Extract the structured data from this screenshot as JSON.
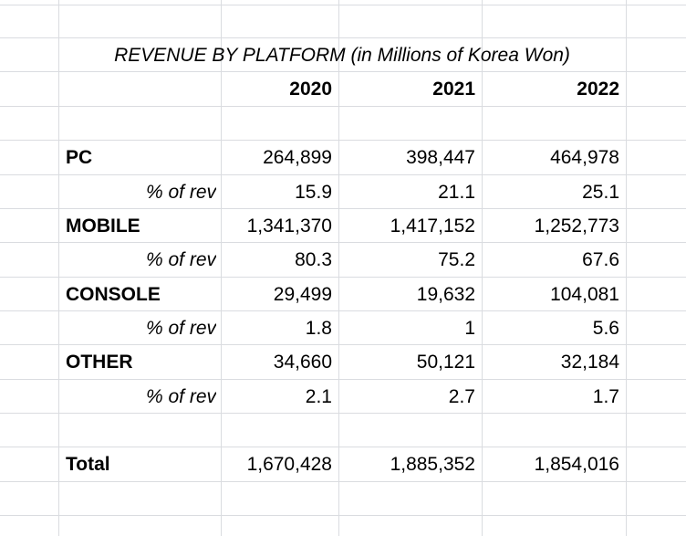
{
  "table": {
    "title": "REVENUE BY PLATFORM (in Millions of Korea Won)",
    "years": [
      "2020",
      "2021",
      "2022"
    ],
    "rows": [
      {
        "label": "PC",
        "values": [
          "264,899",
          "398,447",
          "464,978"
        ]
      },
      {
        "label": "% of rev",
        "values": [
          "15.9",
          "21.1",
          "25.1"
        ]
      },
      {
        "label": "MOBILE",
        "values": [
          "1,341,370",
          "1,417,152",
          "1,252,773"
        ]
      },
      {
        "label": "% of rev",
        "values": [
          "80.3",
          "75.2",
          "67.6"
        ]
      },
      {
        "label": "CONSOLE",
        "values": [
          "29,499",
          "19,632",
          "104,081"
        ]
      },
      {
        "label": "% of rev",
        "values": [
          "1.8",
          "1",
          "5.6"
        ]
      },
      {
        "label": "OTHER",
        "values": [
          "34,660",
          "50,121",
          "32,184"
        ]
      },
      {
        "label": "% of rev",
        "values": [
          "2.1",
          "2.7",
          "1.7"
        ]
      }
    ],
    "total": {
      "label": "Total",
      "values": [
        "1,670,428",
        "1,885,352",
        "1,854,016"
      ]
    }
  }
}
